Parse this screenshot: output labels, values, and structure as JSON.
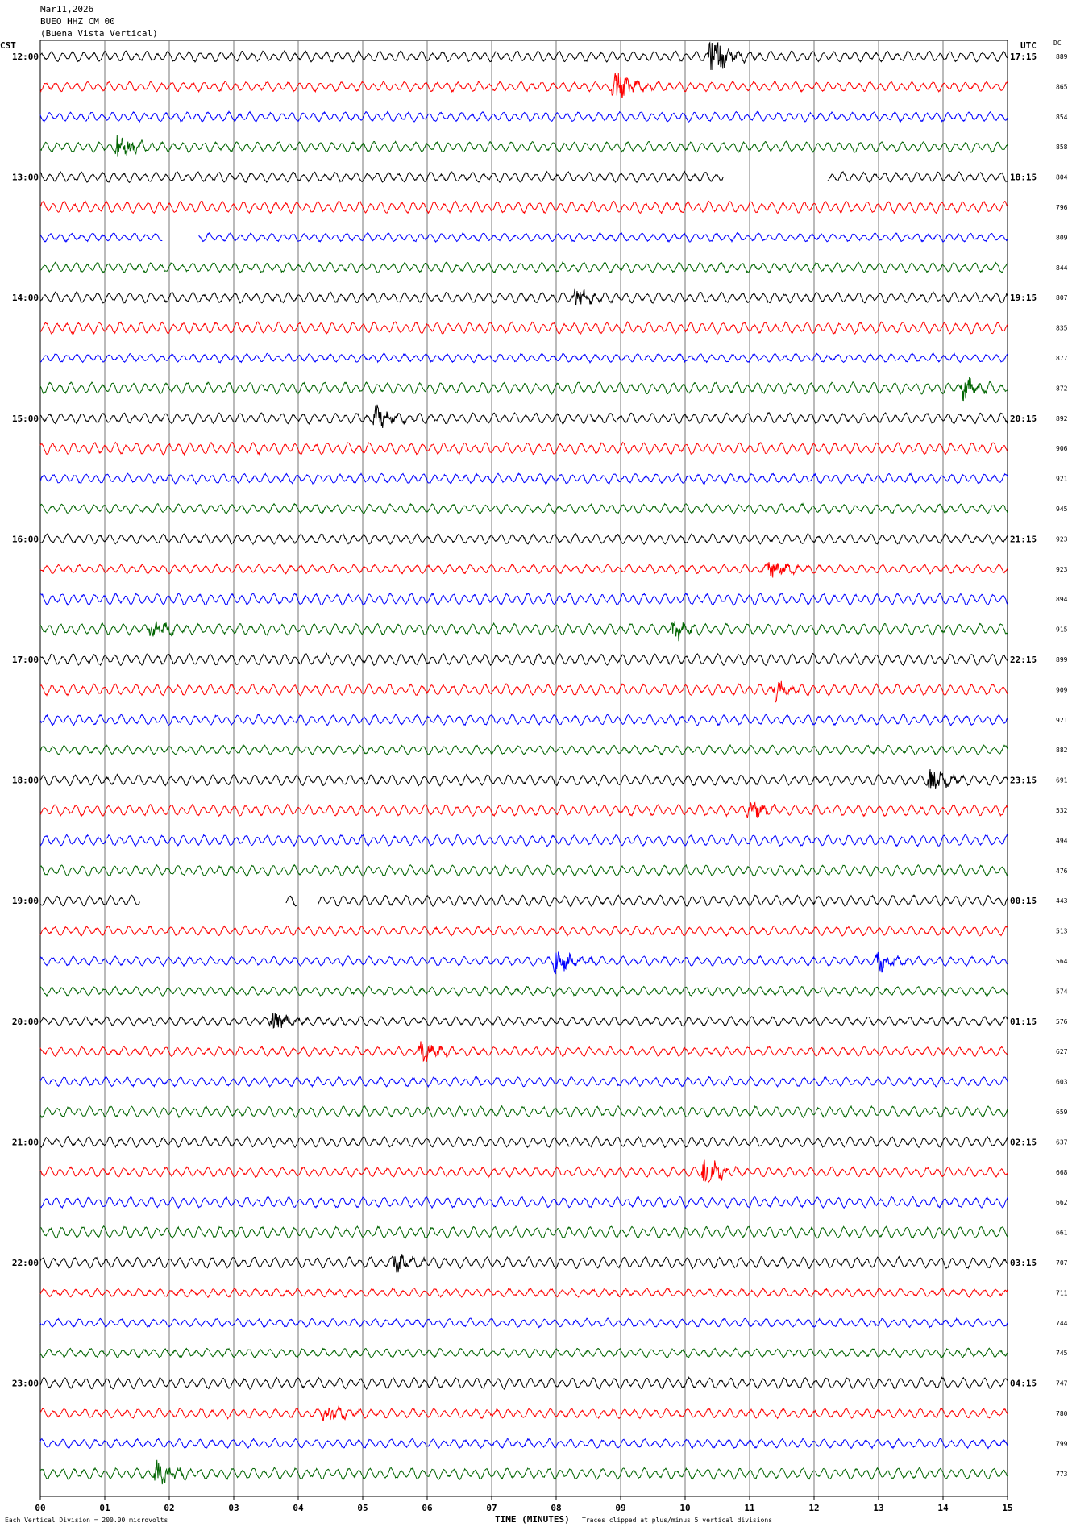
{
  "header": {
    "date": "Mar11,2026",
    "station": "BUEO HHZ CM 00",
    "location": "(Buena Vista Vertical)"
  },
  "left_axis_title": "CST",
  "right_axis_title": "UTC",
  "dc_header": "DC",
  "footer": {
    "scale_note": "Each Vertical Division =  200.00 microvolts",
    "xlabel": "TIME (MINUTES)",
    "clip_note": "Traces clipped at plus/minus 5 vertical divisions"
  },
  "chart_data": {
    "type": "line",
    "title": "BUEO HHZ CM 00 (Buena Vista Vertical)",
    "xlabel": "TIME (MINUTES)",
    "xlim": [
      0,
      15
    ],
    "x_ticks": [
      "00",
      "01",
      "02",
      "03",
      "04",
      "05",
      "06",
      "07",
      "08",
      "09",
      "10",
      "11",
      "12",
      "13",
      "14",
      "15"
    ],
    "left_hour_labels": [
      "12:00",
      "13:00",
      "14:00",
      "15:00",
      "16:00",
      "17:00",
      "18:00",
      "19:00",
      "20:00",
      "21:00",
      "22:00",
      "23:00"
    ],
    "right_hour_labels": [
      "17:15",
      "18:15",
      "19:15",
      "20:15",
      "21:15",
      "22:15",
      "23:15",
      "00:15",
      "01:15",
      "02:15",
      "03:15",
      "04:15"
    ],
    "trace_colors": [
      "#000000",
      "#ff0000",
      "#0000ff",
      "#006400"
    ],
    "dc_offsets": [
      889,
      865,
      854,
      858,
      804,
      796,
      809,
      844,
      807,
      835,
      877,
      872,
      892,
      906,
      921,
      945,
      923,
      923,
      894,
      915,
      899,
      909,
      921,
      882,
      691,
      532,
      494,
      476,
      443,
      513,
      564,
      574,
      576,
      627,
      603,
      659,
      637,
      668,
      662,
      661,
      707,
      711,
      744,
      745,
      747,
      780,
      799,
      773
    ],
    "events": [
      {
        "row": 0,
        "minute": 10.4,
        "amp": 3.0
      },
      {
        "row": 1,
        "minute": 8.9,
        "amp": 2.6
      },
      {
        "row": 3,
        "minute": 1.2,
        "amp": 2.0
      },
      {
        "row": 8,
        "minute": 8.3,
        "amp": 1.4
      },
      {
        "row": 11,
        "minute": 14.3,
        "amp": 1.5
      },
      {
        "row": 12,
        "minute": 5.2,
        "amp": 1.6
      },
      {
        "row": 17,
        "minute": 11.3,
        "amp": 1.4
      },
      {
        "row": 19,
        "minute": 1.7,
        "amp": 1.4
      },
      {
        "row": 19,
        "minute": 9.8,
        "amp": 1.3
      },
      {
        "row": 21,
        "minute": 11.4,
        "amp": 1.3
      },
      {
        "row": 24,
        "minute": 13.8,
        "amp": 1.8
      },
      {
        "row": 25,
        "minute": 11.0,
        "amp": 1.4
      },
      {
        "row": 30,
        "minute": 8.0,
        "amp": 2.2
      },
      {
        "row": 30,
        "minute": 13.0,
        "amp": 1.4
      },
      {
        "row": 32,
        "minute": 3.6,
        "amp": 1.6
      },
      {
        "row": 33,
        "minute": 5.9,
        "amp": 1.5
      },
      {
        "row": 37,
        "minute": 10.3,
        "amp": 2.6
      },
      {
        "row": 40,
        "minute": 5.5,
        "amp": 1.4
      },
      {
        "row": 45,
        "minute": 4.4,
        "amp": 1.8
      },
      {
        "row": 47,
        "minute": 1.8,
        "amp": 1.6
      }
    ],
    "gaps": [
      {
        "row": 4,
        "start": 10.6,
        "end": 12.2
      },
      {
        "row": 6,
        "start": 1.9,
        "end": 2.45
      },
      {
        "row": 28,
        "start": 1.55,
        "end": 3.8
      },
      {
        "row": 28,
        "start": 3.98,
        "end": 4.3
      }
    ]
  }
}
